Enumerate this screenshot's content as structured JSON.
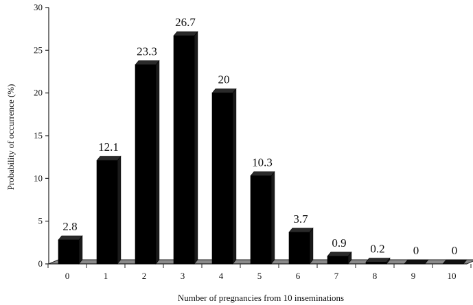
{
  "chart_data": {
    "type": "bar",
    "style": "3d-column",
    "title": "",
    "xlabel": "Number of pregnancies from 10 inseminations",
    "ylabel": "Probability of occurrence  (%)",
    "categories": [
      "0",
      "1",
      "2",
      "3",
      "4",
      "5",
      "6",
      "7",
      "8",
      "9",
      "10"
    ],
    "values": [
      2.8,
      12.1,
      23.3,
      26.7,
      20,
      10.3,
      3.7,
      0.9,
      0.2,
      0,
      0
    ],
    "data_labels": [
      "2.8",
      "12.1",
      "23.3",
      "26.7",
      "20",
      "10.3",
      "3.7",
      "0.9",
      "0.2",
      "0",
      "0"
    ],
    "ylim": [
      0,
      30
    ],
    "yticks": [
      "0",
      "5",
      "10",
      "15",
      "20",
      "25",
      "30"
    ],
    "grid": false,
    "legend": "none",
    "colors": {
      "bar": "#000000",
      "floor": "#8a8a8a",
      "text": "#111111"
    }
  }
}
